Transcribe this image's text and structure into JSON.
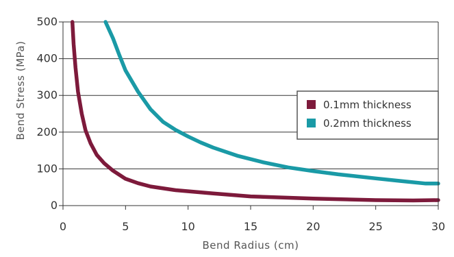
{
  "chart_data": {
    "type": "line",
    "xlabel": "Bend Radius (cm)",
    "ylabel": "Bend Stress (MPa)",
    "xlim": [
      0,
      30
    ],
    "ylim": [
      0,
      500
    ],
    "x_ticks": [
      "0",
      "5",
      "10",
      "15",
      "20",
      "25",
      "30"
    ],
    "y_ticks": [
      "0",
      "100",
      "200",
      "300",
      "400",
      "500"
    ],
    "grid": "horizontal",
    "legend_position": "right",
    "series": [
      {
        "name": "0.1mm thickness",
        "color": "#7d1a3b",
        "x": [
          0.75,
          0.85,
          1.0,
          1.2,
          1.5,
          1.8,
          2.2,
          2.7,
          3.3,
          4.0,
          5.0,
          6.0,
          7.0,
          9.0,
          12.0,
          15.0,
          20.0,
          25.0,
          28.0,
          30.0
        ],
        "y": [
          500,
          440,
          375,
          310,
          250,
          205,
          170,
          138,
          115,
          95,
          73,
          61,
          52,
          42,
          33,
          25,
          19,
          15,
          14,
          15
        ]
      },
      {
        "name": "0.2mm thickness",
        "color": "#1a9aa6",
        "x": [
          3.4,
          4.0,
          4.5,
          5.0,
          6.0,
          7.0,
          8.0,
          9.0,
          10.0,
          11.0,
          12.0,
          14.0,
          16.0,
          18.0,
          20.0,
          22.0,
          25.0,
          27.0,
          29.0,
          30.0
        ],
        "y": [
          500,
          455,
          410,
          368,
          310,
          262,
          228,
          206,
          188,
          172,
          158,
          135,
          118,
          104,
          94,
          85,
          74,
          67,
          60,
          60
        ]
      }
    ]
  }
}
